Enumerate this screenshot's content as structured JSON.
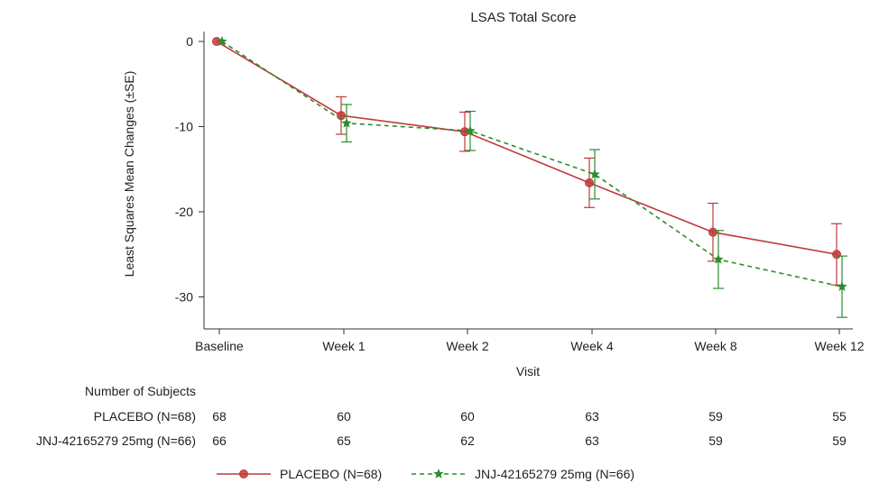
{
  "chart_data": {
    "type": "line",
    "title": "LSAS Total Score",
    "xlabel": "Visit",
    "ylabel": "Least Squares Mean Changes (±SE)",
    "categories": [
      "Baseline",
      "Week 1",
      "Week 2",
      "Week 4",
      "Week 8",
      "Week 12"
    ],
    "ylim": [
      -34,
      1
    ],
    "yticks": [
      0,
      -10,
      -20,
      -30
    ],
    "grid": false,
    "legend_position": "bottom",
    "series": [
      {
        "name": "PLACEBO (N=68)",
        "color": "#c0393b",
        "marker": "circle",
        "line_style": "solid",
        "values": [
          0,
          -8.7,
          -10.6,
          -16.6,
          -22.4,
          -25.0
        ],
        "error_low": [
          0,
          -10.9,
          -12.9,
          -19.5,
          -25.8,
          -28.6
        ],
        "error_high": [
          0,
          -6.5,
          -8.3,
          -13.7,
          -19.0,
          -21.4
        ]
      },
      {
        "name": "JNJ-42165279 25mg (N=66)",
        "color": "#2e8b2e",
        "marker": "star",
        "line_style": "dashed",
        "values": [
          0,
          -9.6,
          -10.5,
          -15.6,
          -25.6,
          -28.8
        ],
        "error_low": [
          0,
          -11.8,
          -12.8,
          -18.5,
          -29.0,
          -32.4
        ],
        "error_high": [
          0,
          -7.4,
          -8.2,
          -12.7,
          -22.2,
          -25.2
        ]
      }
    ],
    "subjects_table": {
      "header": "Number of Subjects",
      "rows": [
        {
          "label": "PLACEBO (N=68)",
          "values": [
            "68",
            "60",
            "60",
            "63",
            "59",
            "55"
          ]
        },
        {
          "label": "JNJ-42165279 25mg (N=66)",
          "values": [
            "66",
            "65",
            "62",
            "63",
            "59",
            "59"
          ]
        }
      ]
    }
  }
}
